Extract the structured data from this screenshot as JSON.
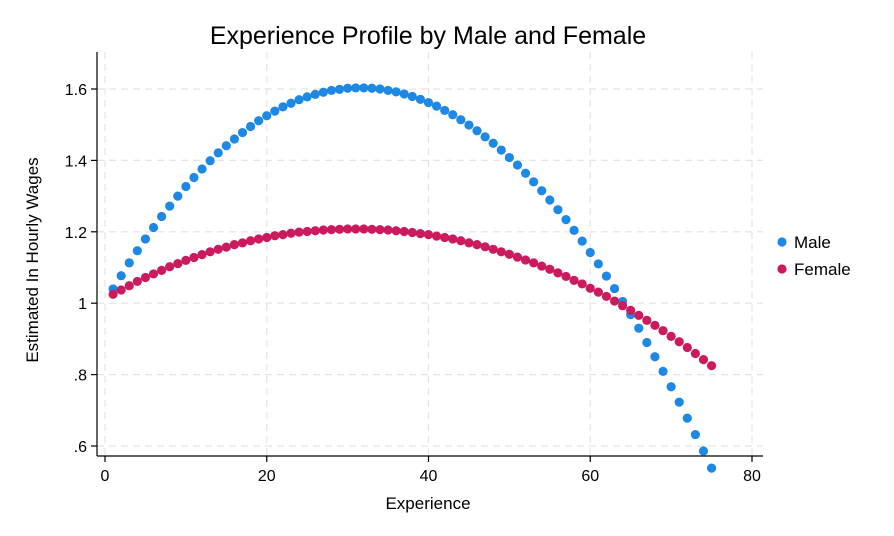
{
  "chart_data": {
    "type": "scatter",
    "title": "Experience Profile by Male and Female",
    "xlabel": "Experience",
    "ylabel": "Estimated In Hourly Wages",
    "xlim": [
      0,
      80
    ],
    "ylim": [
      0.6,
      1.7
    ],
    "xticks": [
      0,
      20,
      40,
      60,
      80
    ],
    "xtick_labels": [
      "0",
      "20",
      "40",
      "60",
      "80"
    ],
    "yticks": [
      0.6,
      0.8,
      1.0,
      1.2,
      1.4,
      1.6
    ],
    "ytick_labels": [
      ".6",
      ".8",
      "1",
      "1.2",
      "1.4",
      "1.6"
    ],
    "grid": true,
    "legend_position": "right",
    "x": [
      1,
      2,
      3,
      4,
      5,
      6,
      7,
      8,
      9,
      10,
      11,
      12,
      13,
      14,
      15,
      16,
      17,
      18,
      19,
      20,
      21,
      22,
      23,
      24,
      25,
      26,
      27,
      28,
      29,
      30,
      31,
      32,
      33,
      34,
      35,
      36,
      37,
      38,
      39,
      40,
      41,
      42,
      43,
      44,
      45,
      46,
      47,
      48,
      49,
      50,
      51,
      52,
      53,
      54,
      55,
      56,
      57,
      58,
      59,
      60,
      61,
      62,
      63,
      64,
      65,
      66,
      67,
      68,
      69,
      70,
      71,
      72,
      73,
      74,
      75
    ],
    "series": [
      {
        "name": "Male",
        "color": "#1e88e5",
        "values": [
          1.04,
          1.077,
          1.113,
          1.147,
          1.18,
          1.212,
          1.243,
          1.272,
          1.3,
          1.327,
          1.352,
          1.376,
          1.399,
          1.421,
          1.441,
          1.46,
          1.478,
          1.495,
          1.511,
          1.525,
          1.538,
          1.55,
          1.56,
          1.57,
          1.578,
          1.585,
          1.591,
          1.596,
          1.599,
          1.602,
          1.603,
          1.603,
          1.602,
          1.6,
          1.596,
          1.592,
          1.586,
          1.579,
          1.571,
          1.562,
          1.552,
          1.54,
          1.528,
          1.514,
          1.499,
          1.483,
          1.466,
          1.448,
          1.429,
          1.408,
          1.387,
          1.364,
          1.34,
          1.315,
          1.289,
          1.262,
          1.234,
          1.204,
          1.174,
          1.142,
          1.11,
          1.076,
          1.041,
          1.005,
          0.968,
          0.93,
          0.89,
          0.85,
          0.809,
          0.766,
          0.723,
          0.678,
          0.632,
          0.586,
          0.538
        ]
      },
      {
        "name": "Female",
        "color": "#cc1a5e",
        "values": [
          1.025,
          1.037,
          1.049,
          1.061,
          1.072,
          1.082,
          1.092,
          1.102,
          1.111,
          1.12,
          1.128,
          1.136,
          1.144,
          1.151,
          1.157,
          1.164,
          1.169,
          1.175,
          1.18,
          1.184,
          1.189,
          1.192,
          1.196,
          1.199,
          1.201,
          1.203,
          1.205,
          1.206,
          1.207,
          1.208,
          1.208,
          1.208,
          1.207,
          1.206,
          1.205,
          1.203,
          1.201,
          1.198,
          1.195,
          1.192,
          1.188,
          1.184,
          1.18,
          1.175,
          1.169,
          1.164,
          1.158,
          1.151,
          1.144,
          1.137,
          1.129,
          1.121,
          1.113,
          1.104,
          1.095,
          1.085,
          1.075,
          1.064,
          1.054,
          1.042,
          1.031,
          1.019,
          1.006,
          0.993,
          0.98,
          0.966,
          0.952,
          0.938,
          0.923,
          0.907,
          0.892,
          0.876,
          0.859,
          0.842,
          0.825
        ]
      }
    ]
  }
}
